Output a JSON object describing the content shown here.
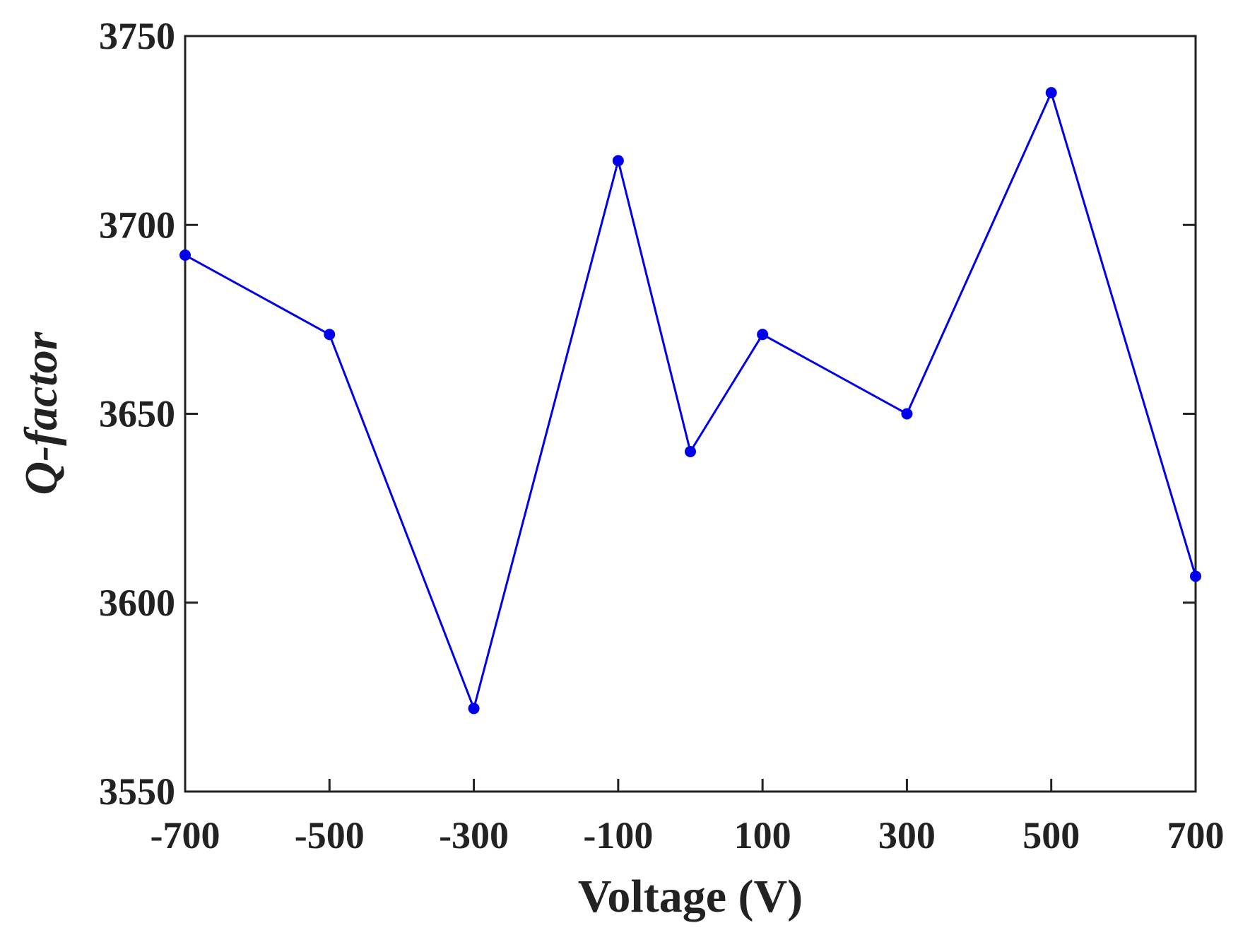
{
  "chart_data": {
    "type": "line",
    "xlabel": "Voltage (V)",
    "ylabel": "Q-factor",
    "x": [
      -700,
      -500,
      -300,
      -100,
      0,
      100,
      300,
      500,
      700
    ],
    "series": [
      {
        "color": "#0000ee",
        "values": [
          3692,
          3671,
          3572,
          3717,
          3640,
          3671,
          3650,
          3735,
          3607
        ]
      }
    ],
    "xlim": [
      -700,
      700
    ],
    "xticks": [
      -700,
      -500,
      -300,
      -100,
      100,
      300,
      500,
      700
    ],
    "ylim": [
      3550,
      3750
    ],
    "yticks": [
      3550,
      3600,
      3650,
      3700,
      3750
    ],
    "grid": false,
    "markers": true
  }
}
